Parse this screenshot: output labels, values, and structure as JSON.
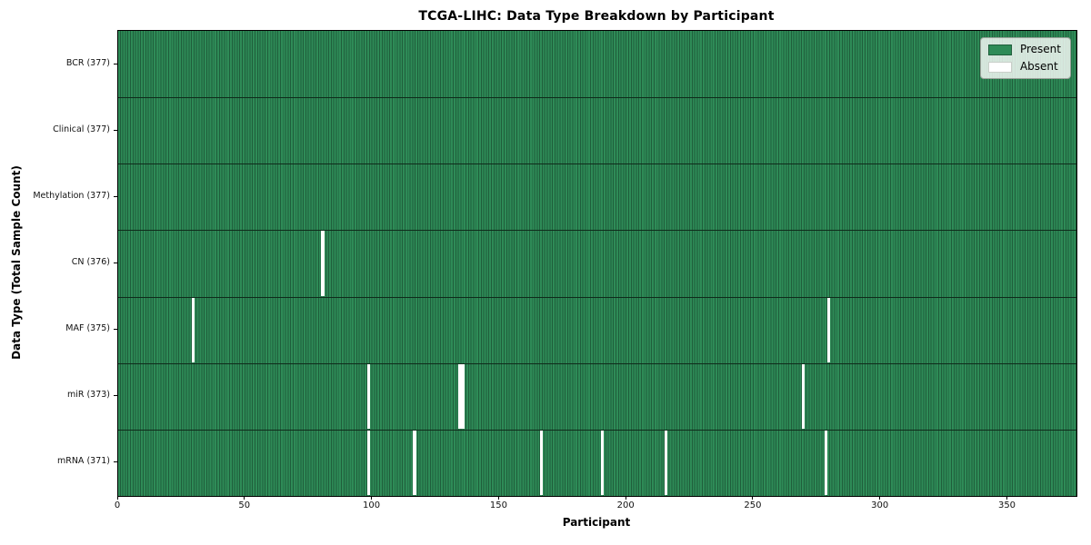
{
  "title": "TCGA-LIHC: Data Type Breakdown by Participant",
  "colors": {
    "present": "#2e8b57",
    "present_edge": "#1f5e3b",
    "absent": "#ffffff",
    "row_divider": "#0f2b1b",
    "axis": "#000000"
  },
  "legend": {
    "present": "Present",
    "absent": "Absent"
  },
  "chart_data": {
    "type": "heatmap",
    "title": "TCGA-LIHC: Data Type Breakdown by Participant",
    "xlabel": "Participant",
    "ylabel": "Data Type (Total Sample Count)",
    "legend_entries": [
      "Present",
      "Absent"
    ],
    "legend_position": "upper right",
    "grid": false,
    "n_participants": 377,
    "x_range": [
      0,
      377
    ],
    "x_ticks": [
      0,
      50,
      100,
      150,
      200,
      250,
      300,
      350
    ],
    "value_encoding": {
      "present": 1,
      "absent": 0
    },
    "rows": [
      {
        "name": "BCR",
        "label": "BCR (377)",
        "total": 377,
        "absent_participants": []
      },
      {
        "name": "Clinical",
        "label": "Clinical (377)",
        "total": 377,
        "absent_participants": []
      },
      {
        "name": "Methylation",
        "label": "Methylation (377)",
        "total": 377,
        "absent_participants": []
      },
      {
        "name": "CN",
        "label": "CN (376)",
        "total": 376,
        "absent_participants": [
          80
        ]
      },
      {
        "name": "MAF",
        "label": "MAF (375)",
        "total": 375,
        "absent_participants": [
          29,
          279
        ]
      },
      {
        "name": "miR",
        "label": "miR (373)",
        "total": 373,
        "absent_participants": [
          98,
          134,
          135,
          269
        ]
      },
      {
        "name": "mRNA",
        "label": "mRNA (371)",
        "total": 371,
        "absent_participants": [
          98,
          116,
          166,
          190,
          215,
          278
        ]
      }
    ]
  }
}
